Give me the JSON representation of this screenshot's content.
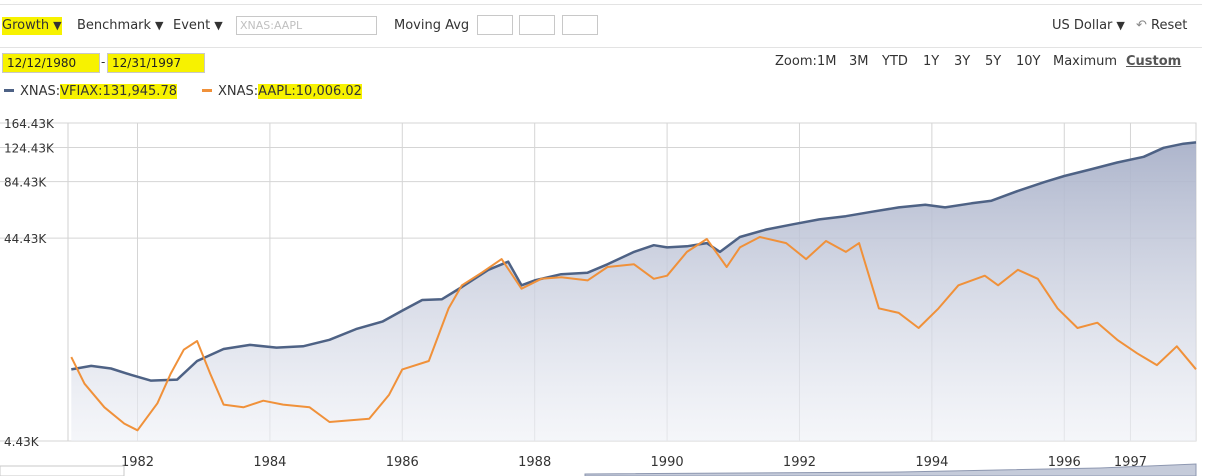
{
  "toolbar": {
    "growth": "Growth",
    "benchmark": "Benchmark",
    "event": "Event",
    "search_placeholder": "XNAS:AAPL",
    "moving_avg": "Moving Avg",
    "currency": "US Dollar",
    "reset": "Reset"
  },
  "dates": {
    "start": "12/12/1980",
    "separator": "-",
    "end": "12/31/1997"
  },
  "zoom": {
    "label": "Zoom:",
    "options": [
      "1M",
      "3M",
      "YTD",
      "1Y",
      "3Y",
      "5Y",
      "10Y",
      "Maximum"
    ],
    "custom": "Custom"
  },
  "legend": [
    {
      "prefix": "XNAS:",
      "name": "VFIAX:",
      "value": "131,945.78",
      "color": "#4e6285"
    },
    {
      "prefix": "XNAS:",
      "name": "AAPL:",
      "value": "10,006.02",
      "color": "#f0913a"
    }
  ],
  "chart_data": {
    "type": "line",
    "y_scale": "log",
    "y_ticks": [
      4430,
      44430,
      84430,
      124430,
      164430
    ],
    "y_tick_labels": [
      "4.43K",
      "44.43K",
      "84.43K",
      "124.43K",
      "164.43K"
    ],
    "x_range": [
      1980.95,
      1997.99
    ],
    "x_ticks": [
      1982,
      1984,
      1986,
      1988,
      1990,
      1992,
      1994,
      1996,
      1997
    ],
    "x_tick_labels": [
      "1982",
      "1984",
      "1986",
      "1988",
      "1990",
      "1992",
      "1994",
      "1996",
      "1997"
    ],
    "grid": true,
    "series": [
      {
        "name": "XNAS:VFIAX",
        "color": "#4e6285",
        "area": true,
        "points": [
          [
            1981.0,
            10000
          ],
          [
            1981.3,
            10400
          ],
          [
            1981.6,
            10100
          ],
          [
            1981.9,
            9400
          ],
          [
            1982.2,
            8800
          ],
          [
            1982.6,
            8900
          ],
          [
            1982.9,
            11000
          ],
          [
            1983.3,
            12600
          ],
          [
            1983.7,
            13200
          ],
          [
            1984.1,
            12800
          ],
          [
            1984.5,
            13000
          ],
          [
            1984.9,
            14000
          ],
          [
            1985.3,
            15800
          ],
          [
            1985.7,
            17200
          ],
          [
            1986.0,
            19500
          ],
          [
            1986.3,
            22000
          ],
          [
            1986.6,
            22200
          ],
          [
            1986.9,
            25500
          ],
          [
            1987.3,
            31000
          ],
          [
            1987.6,
            34000
          ],
          [
            1987.8,
            26000
          ],
          [
            1988.0,
            27500
          ],
          [
            1988.4,
            29500
          ],
          [
            1988.8,
            30000
          ],
          [
            1989.1,
            33000
          ],
          [
            1989.5,
            38000
          ],
          [
            1989.8,
            41000
          ],
          [
            1990.0,
            40000
          ],
          [
            1990.3,
            40500
          ],
          [
            1990.6,
            42000
          ],
          [
            1990.8,
            38000
          ],
          [
            1991.1,
            45000
          ],
          [
            1991.5,
            49000
          ],
          [
            1991.9,
            52000
          ],
          [
            1992.3,
            55000
          ],
          [
            1992.7,
            57000
          ],
          [
            1993.1,
            60000
          ],
          [
            1993.5,
            63000
          ],
          [
            1993.9,
            65000
          ],
          [
            1994.2,
            63000
          ],
          [
            1994.6,
            66000
          ],
          [
            1994.9,
            68000
          ],
          [
            1995.3,
            76000
          ],
          [
            1995.7,
            84000
          ],
          [
            1996.0,
            90000
          ],
          [
            1996.4,
            97000
          ],
          [
            1996.8,
            105000
          ],
          [
            1997.2,
            112000
          ],
          [
            1997.5,
            124000
          ],
          [
            1997.8,
            130000
          ],
          [
            1997.99,
            131946
          ]
        ]
      },
      {
        "name": "XNAS:AAPL",
        "color": "#f0913a",
        "area": false,
        "points": [
          [
            1981.0,
            11500
          ],
          [
            1981.2,
            8500
          ],
          [
            1981.5,
            6500
          ],
          [
            1981.8,
            5400
          ],
          [
            1982.0,
            5000
          ],
          [
            1982.3,
            6800
          ],
          [
            1982.5,
            9500
          ],
          [
            1982.7,
            12500
          ],
          [
            1982.9,
            13800
          ],
          [
            1983.1,
            9500
          ],
          [
            1983.3,
            6700
          ],
          [
            1983.6,
            6500
          ],
          [
            1983.9,
            7000
          ],
          [
            1984.2,
            6700
          ],
          [
            1984.6,
            6500
          ],
          [
            1984.9,
            5500
          ],
          [
            1985.2,
            5600
          ],
          [
            1985.5,
            5700
          ],
          [
            1985.8,
            7500
          ],
          [
            1986.0,
            10000
          ],
          [
            1986.4,
            11000
          ],
          [
            1986.7,
            20000
          ],
          [
            1986.9,
            26000
          ],
          [
            1987.2,
            30000
          ],
          [
            1987.5,
            35000
          ],
          [
            1987.8,
            25000
          ],
          [
            1988.1,
            28000
          ],
          [
            1988.4,
            28500
          ],
          [
            1988.8,
            27500
          ],
          [
            1989.1,
            32000
          ],
          [
            1989.5,
            33000
          ],
          [
            1989.8,
            28000
          ],
          [
            1990.0,
            29000
          ],
          [
            1990.3,
            38000
          ],
          [
            1990.6,
            44000
          ],
          [
            1990.9,
            32000
          ],
          [
            1991.1,
            40000
          ],
          [
            1991.4,
            45000
          ],
          [
            1991.8,
            42000
          ],
          [
            1992.1,
            35000
          ],
          [
            1992.4,
            43000
          ],
          [
            1992.7,
            38000
          ],
          [
            1992.9,
            42000
          ],
          [
            1993.2,
            20000
          ],
          [
            1993.5,
            19000
          ],
          [
            1993.8,
            16000
          ],
          [
            1994.1,
            20000
          ],
          [
            1994.4,
            26000
          ],
          [
            1994.8,
            29000
          ],
          [
            1995.0,
            26000
          ],
          [
            1995.3,
            31000
          ],
          [
            1995.6,
            28000
          ],
          [
            1995.9,
            20000
          ],
          [
            1996.2,
            16000
          ],
          [
            1996.5,
            17000
          ],
          [
            1996.8,
            14000
          ],
          [
            1997.1,
            12000
          ],
          [
            1997.4,
            10500
          ],
          [
            1997.7,
            13000
          ],
          [
            1997.99,
            10006
          ]
        ]
      }
    ]
  }
}
